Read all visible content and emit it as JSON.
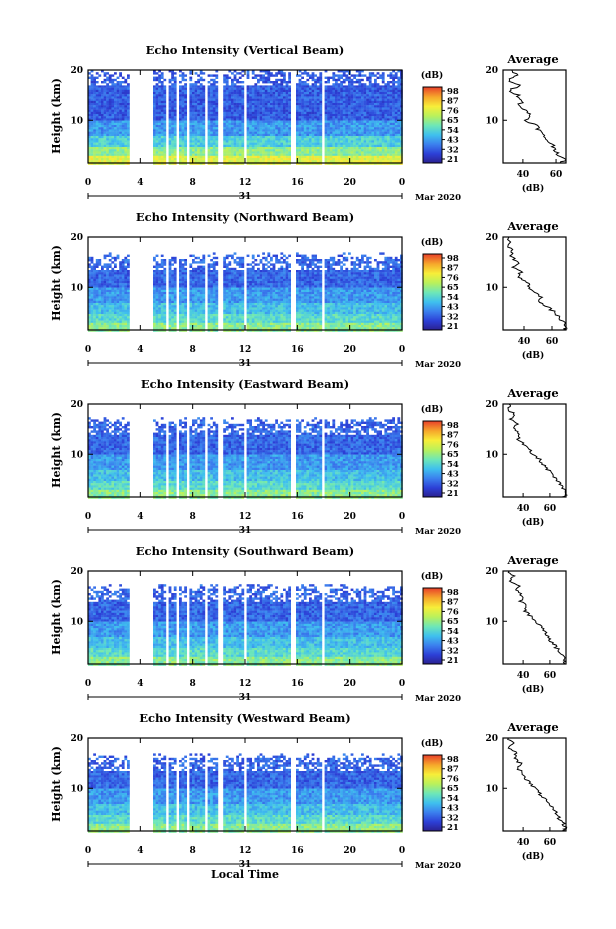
{
  "common": {
    "x_ticks": [
      "0",
      "4",
      "8",
      "12",
      "16",
      "20",
      "0"
    ],
    "y_ticks": [
      "20",
      "10"
    ],
    "y_label": "Height (km)",
    "day_label": "31",
    "month_label": "Mar 2020",
    "colorbar_unit": "(dB)",
    "colorbar_ticks": [
      "98",
      "87",
      "76",
      "65",
      "54",
      "43",
      "32",
      "21"
    ],
    "avg_title": "Average",
    "avg_xlabel": "(dB)",
    "avg_y_ticks": [
      "20",
      "10"
    ],
    "x_axis_title": "Local Time",
    "colormap": [
      "#2b1f8c",
      "#2c3fd6",
      "#3b7fee",
      "#3fc0ee",
      "#6ee7b7",
      "#b9f15c",
      "#f7ee39",
      "#f6a82b",
      "#e9452a"
    ]
  },
  "chart_data": [
    {
      "type": "heatmap",
      "title": "Echo Intensity (Vertical Beam)",
      "x_range_hours": [
        0,
        24
      ],
      "y_range_km": [
        1.5,
        20
      ],
      "colorbar_range_db": [
        21,
        98
      ],
      "top_of_echo_km": 20,
      "near_surface_db": 70,
      "avg_profile": {
        "xlim": [
          28,
          66
        ],
        "xticks": [
          "40",
          "60"
        ],
        "points": [
          [
            33,
            20
          ],
          [
            36,
            19
          ],
          [
            31,
            18
          ],
          [
            38,
            17
          ],
          [
            32,
            16
          ],
          [
            37,
            15
          ],
          [
            40,
            14
          ],
          [
            38,
            13
          ],
          [
            41,
            12
          ],
          [
            45,
            11
          ],
          [
            42,
            10
          ],
          [
            48,
            9
          ],
          [
            50,
            8
          ],
          [
            52,
            7
          ],
          [
            55,
            6
          ],
          [
            58,
            5
          ],
          [
            60,
            4
          ],
          [
            62,
            3
          ],
          [
            65,
            2
          ],
          [
            63,
            1.5
          ]
        ]
      }
    },
    {
      "type": "heatmap",
      "title": "Echo Intensity (Northward Beam)",
      "x_range_hours": [
        0,
        24
      ],
      "y_range_km": [
        1.5,
        20
      ],
      "colorbar_range_db": [
        21,
        98
      ],
      "top_of_echo_km": 16.5,
      "near_surface_db": 55,
      "avg_profile": {
        "xlim": [
          25,
          70
        ],
        "xticks": [
          "40",
          "60"
        ],
        "points": [
          [
            30,
            20
          ],
          [
            29,
            18
          ],
          [
            32,
            17
          ],
          [
            31,
            16
          ],
          [
            36,
            15
          ],
          [
            33,
            14
          ],
          [
            38,
            13
          ],
          [
            36,
            12
          ],
          [
            42,
            11
          ],
          [
            44,
            10
          ],
          [
            47,
            9
          ],
          [
            53,
            8
          ],
          [
            51,
            7
          ],
          [
            57,
            6
          ],
          [
            62,
            5
          ],
          [
            65,
            4
          ],
          [
            68,
            3
          ],
          [
            70,
            2
          ],
          [
            68,
            1.5
          ]
        ]
      }
    },
    {
      "type": "heatmap",
      "title": "Echo Intensity (Eastward Beam)",
      "x_range_hours": [
        0,
        24
      ],
      "y_range_km": [
        1.5,
        20
      ],
      "colorbar_range_db": [
        21,
        98
      ],
      "top_of_echo_km": 17,
      "near_surface_db": 55,
      "avg_profile": {
        "xlim": [
          25,
          72
        ],
        "xticks": [
          "40",
          "60"
        ],
        "points": [
          [
            30,
            20
          ],
          [
            29,
            19
          ],
          [
            33,
            18
          ],
          [
            31,
            17
          ],
          [
            35,
            16
          ],
          [
            34,
            15
          ],
          [
            38,
            14
          ],
          [
            36,
            13
          ],
          [
            40,
            12
          ],
          [
            44,
            11
          ],
          [
            47,
            10
          ],
          [
            52,
            9
          ],
          [
            55,
            8
          ],
          [
            58,
            7
          ],
          [
            62,
            6
          ],
          [
            64,
            5
          ],
          [
            68,
            4
          ],
          [
            70,
            3
          ],
          [
            72,
            2
          ],
          [
            69,
            1.5
          ]
        ]
      }
    },
    {
      "type": "heatmap",
      "title": "Echo Intensity (Southward Beam)",
      "x_range_hours": [
        0,
        24
      ],
      "y_range_km": [
        1.5,
        20
      ],
      "colorbar_range_db": [
        21,
        98
      ],
      "top_of_echo_km": 17,
      "near_surface_db": 55,
      "avg_profile": {
        "xlim": [
          25,
          72
        ],
        "xticks": [
          "40",
          "60"
        ],
        "points": [
          [
            29,
            20
          ],
          [
            33,
            19
          ],
          [
            31,
            18
          ],
          [
            37,
            17
          ],
          [
            35,
            16
          ],
          [
            40,
            15
          ],
          [
            38,
            14
          ],
          [
            43,
            13
          ],
          [
            41,
            12
          ],
          [
            46,
            11
          ],
          [
            49,
            10
          ],
          [
            54,
            9
          ],
          [
            56,
            8
          ],
          [
            59,
            7
          ],
          [
            61,
            6
          ],
          [
            64,
            5
          ],
          [
            67,
            4
          ],
          [
            70,
            3
          ],
          [
            72,
            2
          ],
          [
            70,
            1.5
          ]
        ]
      }
    },
    {
      "type": "heatmap",
      "title": "Echo Intensity (Westward Beam)",
      "x_range_hours": [
        0,
        24
      ],
      "y_range_km": [
        1.5,
        20
      ],
      "colorbar_range_db": [
        21,
        98
      ],
      "top_of_echo_km": 16.5,
      "near_surface_db": 55,
      "avg_profile": {
        "xlim": [
          25,
          72
        ],
        "xticks": [
          "40",
          "60"
        ],
        "points": [
          [
            29,
            20
          ],
          [
            32,
            19
          ],
          [
            30,
            18
          ],
          [
            35,
            17
          ],
          [
            33,
            16
          ],
          [
            38,
            15
          ],
          [
            36,
            14
          ],
          [
            40,
            13
          ],
          [
            42,
            12
          ],
          [
            45,
            11
          ],
          [
            49,
            10
          ],
          [
            52,
            9
          ],
          [
            56,
            8
          ],
          [
            58,
            7
          ],
          [
            62,
            6
          ],
          [
            65,
            5
          ],
          [
            67,
            4
          ],
          [
            70,
            3
          ],
          [
            72,
            2
          ],
          [
            69,
            1.5
          ]
        ]
      }
    }
  ]
}
